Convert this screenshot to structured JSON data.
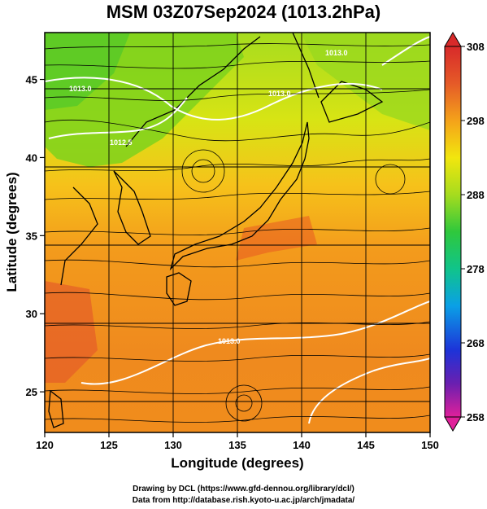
{
  "title": "MSM 03Z07Sep2024 (1013.2hPa)",
  "axes": {
    "xlabel": "Longitude (degrees)",
    "ylabel": "Latitude  (degrees)",
    "xlim": [
      120,
      150
    ],
    "ylim": [
      22.4,
      48
    ],
    "xticks": [
      "120",
      "125",
      "130",
      "135",
      "140",
      "145",
      "150"
    ],
    "yticks": [
      "25",
      "30",
      "35",
      "40",
      "45"
    ]
  },
  "colorbar": {
    "ticks": [
      "308",
      "298",
      "288",
      "278",
      "268",
      "258"
    ],
    "range": [
      258,
      308
    ],
    "colors": [
      "#e0209a",
      "#6a1fb0",
      "#1d33d8",
      "#0aa0e6",
      "#10c48a",
      "#2fc83c",
      "#a6dc1e",
      "#f2e60e",
      "#f4a21a",
      "#e55a28",
      "#d82a2a"
    ]
  },
  "contour_labels": [
    "1013.0",
    "1013.0",
    "1013.0",
    "1012.5",
    "1013.0"
  ],
  "credits": {
    "line1": "Drawing by DCL (https://www.gfd-dennou.org/library/dcl/)",
    "line2": "Data from http://database.rish.kyoto-u.ac.jp/arch/jmadata/"
  }
}
